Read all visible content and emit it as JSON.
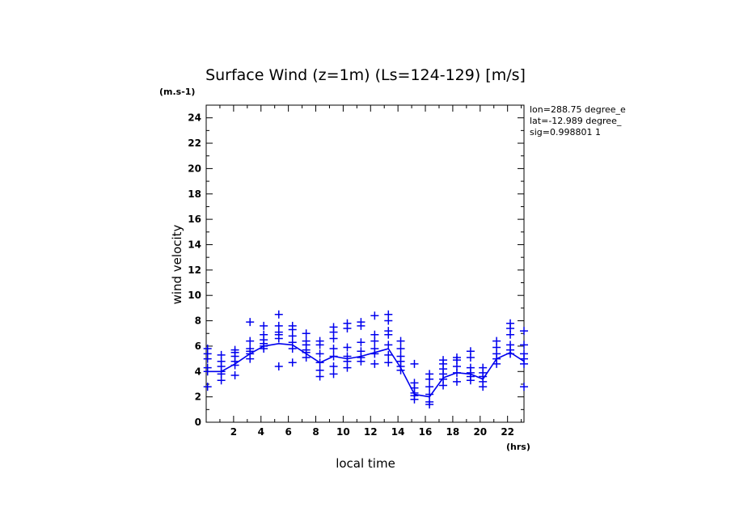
{
  "chart_data": {
    "type": "scatter",
    "title": "Surface Wind (z=1m) (Ls=124-129) [m/s]",
    "y_unit": "(m.s-1)",
    "x_unit": "(hrs)",
    "xlabel": "local time",
    "ylabel": "wind velocity",
    "xlim": [
      0,
      23.2
    ],
    "ylim": [
      0,
      25
    ],
    "x_ticks": [
      2,
      4,
      6,
      8,
      10,
      12,
      14,
      16,
      18,
      20,
      22
    ],
    "y_ticks": [
      0,
      2,
      4,
      6,
      8,
      10,
      12,
      14,
      16,
      18,
      20,
      22,
      24
    ],
    "info_lines": [
      "lon=288.75 degree_e",
      "lat=-12.989 degree_",
      "sig=0.998801 1"
    ],
    "color": "#0000ee",
    "mean_line": {
      "x": [
        0.1,
        1.1,
        2.1,
        3.2,
        4.2,
        5.3,
        6.3,
        7.3,
        8.3,
        9.3,
        10.3,
        11.3,
        12.3,
        13.3,
        14.2,
        15.2,
        16.3,
        17.3,
        18.3,
        19.3,
        20.2,
        21.2,
        22.2,
        23.2
      ],
      "y": [
        4.0,
        4.0,
        4.6,
        5.4,
        6.0,
        6.2,
        6.1,
        5.4,
        4.7,
        5.2,
        5.0,
        5.2,
        5.5,
        5.8,
        4.3,
        2.2,
        2.0,
        3.5,
        3.9,
        3.8,
        3.4,
        5.0,
        5.5,
        4.8
      ]
    },
    "scatter": [
      {
        "x": 0.1,
        "y": [
          2.8,
          4.0,
          4.3,
          5.0,
          5.4,
          5.8
        ]
      },
      {
        "x": 1.1,
        "y": [
          3.3,
          3.8,
          4.0,
          4.4,
          4.8,
          5.3
        ]
      },
      {
        "x": 2.1,
        "y": [
          3.7,
          4.5,
          4.8,
          5.2,
          5.5,
          5.7
        ]
      },
      {
        "x": 3.2,
        "y": [
          5.0,
          5.4,
          5.6,
          5.8,
          6.4,
          7.9
        ]
      },
      {
        "x": 4.2,
        "y": [
          5.8,
          6.0,
          6.2,
          6.5,
          6.9,
          7.6
        ]
      },
      {
        "x": 5.3,
        "y": [
          4.4,
          6.6,
          6.9,
          7.1,
          7.6,
          8.5
        ]
      },
      {
        "x": 6.3,
        "y": [
          4.7,
          5.8,
          6.3,
          6.8,
          7.3,
          7.6
        ]
      },
      {
        "x": 7.3,
        "y": [
          5.1,
          5.5,
          5.7,
          6.1,
          6.4,
          7.0
        ]
      },
      {
        "x": 8.3,
        "y": [
          3.6,
          4.1,
          4.7,
          5.4,
          6.1,
          6.4
        ]
      },
      {
        "x": 9.3,
        "y": [
          3.8,
          4.4,
          5.2,
          5.8,
          6.6,
          7.1,
          7.5
        ]
      },
      {
        "x": 10.3,
        "y": [
          4.3,
          4.8,
          5.2,
          5.9,
          7.4,
          7.8
        ]
      },
      {
        "x": 11.3,
        "y": [
          4.8,
          5.1,
          5.6,
          6.3,
          7.6,
          7.9
        ]
      },
      {
        "x": 12.3,
        "y": [
          4.6,
          5.4,
          5.8,
          6.4,
          6.9,
          8.4
        ]
      },
      {
        "x": 13.3,
        "y": [
          4.7,
          5.3,
          6.1,
          6.9,
          7.2,
          8.0,
          8.5
        ]
      },
      {
        "x": 14.2,
        "y": [
          4.1,
          4.4,
          4.8,
          5.2,
          5.8,
          6.4
        ]
      },
      {
        "x": 15.2,
        "y": [
          1.8,
          2.1,
          2.3,
          2.7,
          3.1,
          4.6
        ]
      },
      {
        "x": 16.3,
        "y": [
          1.4,
          1.6,
          2.2,
          2.8,
          3.4,
          3.8
        ]
      },
      {
        "x": 17.3,
        "y": [
          2.9,
          3.4,
          3.8,
          4.2,
          4.6,
          4.9
        ]
      },
      {
        "x": 18.3,
        "y": [
          3.2,
          3.9,
          4.4,
          4.9,
          5.1
        ]
      },
      {
        "x": 19.3,
        "y": [
          3.3,
          3.6,
          3.9,
          4.3,
          5.1,
          5.6
        ]
      },
      {
        "x": 20.2,
        "y": [
          2.8,
          3.2,
          3.6,
          3.9,
          4.3
        ]
      },
      {
        "x": 21.2,
        "y": [
          4.6,
          5.0,
          5.4,
          5.9,
          6.4
        ]
      },
      {
        "x": 22.2,
        "y": [
          5.4,
          5.7,
          6.1,
          6.9,
          7.4,
          7.8
        ]
      },
      {
        "x": 23.2,
        "y": [
          2.8,
          4.6,
          5.0,
          5.4,
          6.1,
          7.2
        ]
      }
    ]
  }
}
